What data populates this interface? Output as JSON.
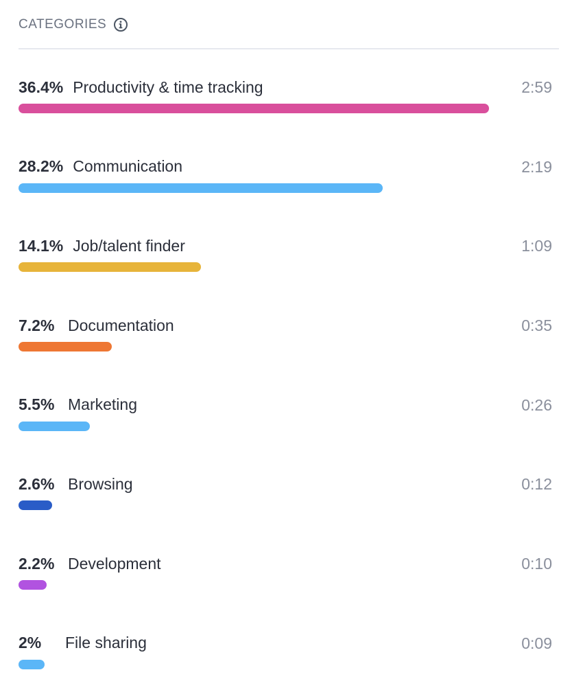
{
  "header": {
    "title": "CATEGORIES",
    "info_icon": "info-circle-icon"
  },
  "categories": [
    {
      "percent": "36.4%",
      "label": "Productivity & time tracking",
      "duration": "2:59",
      "fraction": 0.364,
      "color": "#d94f9c"
    },
    {
      "percent": "28.2%",
      "label": "Communication",
      "duration": "2:19",
      "fraction": 0.282,
      "color": "#5bb6f7"
    },
    {
      "percent": "14.1%",
      "label": "Job/talent finder",
      "duration": "1:09",
      "fraction": 0.141,
      "color": "#e7b43a"
    },
    {
      "percent": "7.2%",
      "label": "Documentation",
      "duration": "0:35",
      "fraction": 0.072,
      "color": "#ee7733"
    },
    {
      "percent": "5.5%",
      "label": "Marketing",
      "duration": "0:26",
      "fraction": 0.055,
      "color": "#5bb6f7"
    },
    {
      "percent": "2.6%",
      "label": "Browsing",
      "duration": "0:12",
      "fraction": 0.026,
      "color": "#2a5cc7"
    },
    {
      "percent": "2.2%",
      "label": "Development",
      "duration": "0:10",
      "fraction": 0.022,
      "color": "#b153e0"
    },
    {
      "percent": "2%",
      "label": "File sharing",
      "duration": "0:09",
      "fraction": 0.02,
      "color": "#5bb6f7"
    }
  ]
}
